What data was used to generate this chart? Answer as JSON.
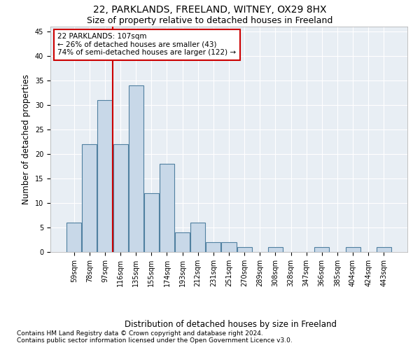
{
  "title": "22, PARKLANDS, FREELAND, WITNEY, OX29 8HX",
  "subtitle": "Size of property relative to detached houses in Freeland",
  "xlabel": "Distribution of detached houses by size in Freeland",
  "ylabel": "Number of detached properties",
  "footnote1": "Contains HM Land Registry data © Crown copyright and database right 2024.",
  "footnote2": "Contains public sector information licensed under the Open Government Licence v3.0.",
  "categories": [
    "59sqm",
    "78sqm",
    "97sqm",
    "116sqm",
    "135sqm",
    "155sqm",
    "174sqm",
    "193sqm",
    "212sqm",
    "231sqm",
    "251sqm",
    "270sqm",
    "289sqm",
    "308sqm",
    "328sqm",
    "347sqm",
    "366sqm",
    "385sqm",
    "404sqm",
    "424sqm",
    "443sqm"
  ],
  "values": [
    6,
    22,
    31,
    22,
    34,
    12,
    18,
    4,
    6,
    2,
    2,
    1,
    0,
    1,
    0,
    0,
    1,
    0,
    1,
    0,
    1
  ],
  "bar_color": "#c8d8e8",
  "bar_edge_color": "#5080a0",
  "annotation_text": "22 PARKLANDS: 107sqm\n← 26% of detached houses are smaller (43)\n74% of semi-detached houses are larger (122) →",
  "annotation_box_color": "#ffffff",
  "annotation_box_edge": "#cc0000",
  "vline_x": 2.5,
  "vline_color": "#cc0000",
  "ylim": [
    0,
    46
  ],
  "yticks": [
    0,
    5,
    10,
    15,
    20,
    25,
    30,
    35,
    40,
    45
  ],
  "background_color": "#e8eef4",
  "title_fontsize": 10,
  "subtitle_fontsize": 9,
  "axis_label_fontsize": 8.5,
  "tick_fontsize": 7,
  "footnote_fontsize": 6.5,
  "annotation_fontsize": 7.5
}
